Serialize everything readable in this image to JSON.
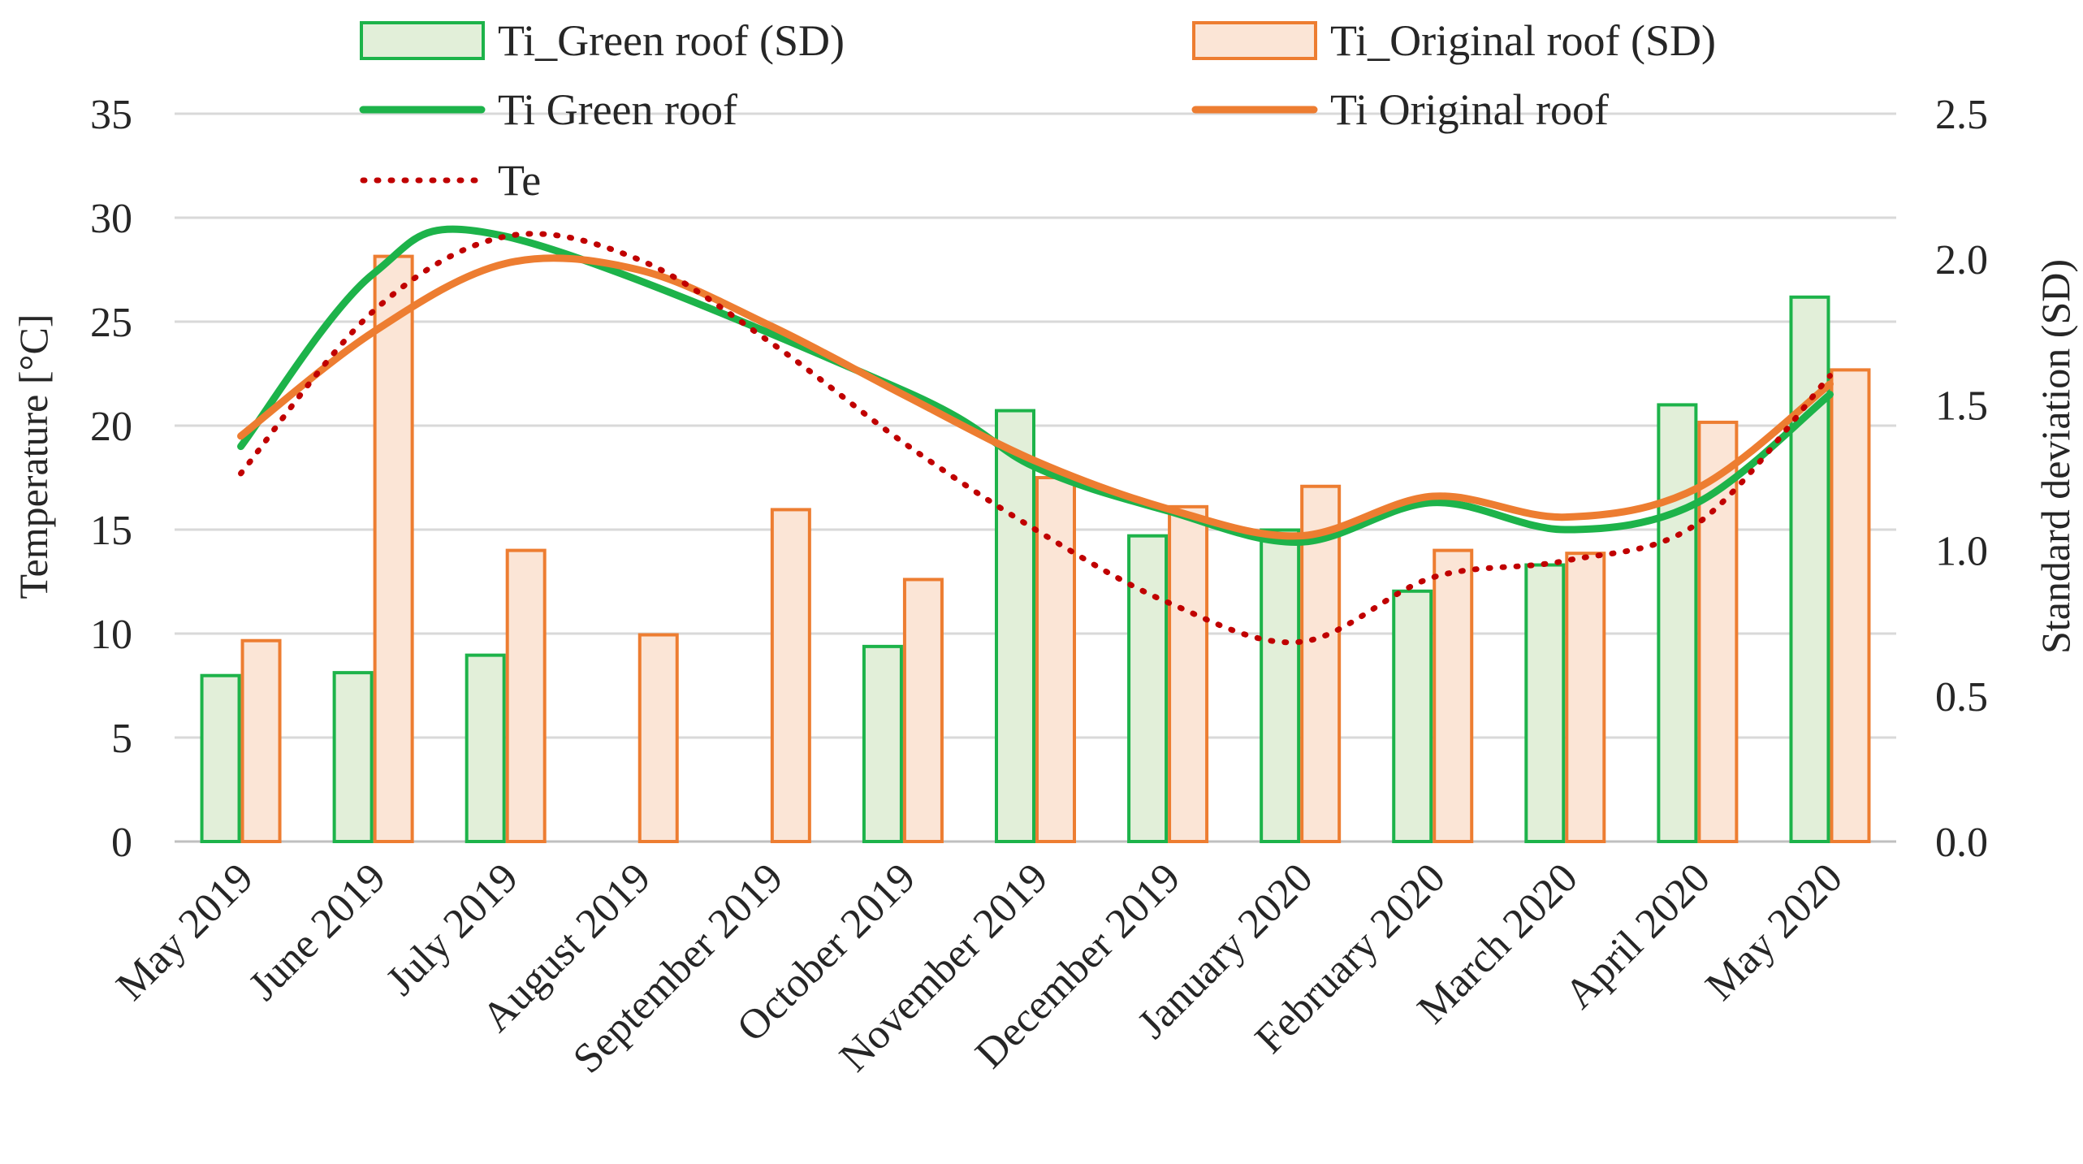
{
  "chart_data": {
    "type": "bar",
    "categories": [
      "May 2019",
      "June 2019",
      "July 2019",
      "August 2019",
      "September 2019",
      "October 2019",
      "November 2019",
      "December 2019",
      "January 2020",
      "February 2020",
      "March 2020",
      "April 2020",
      "May 2020"
    ],
    "bar_series": [
      {
        "name": "Ti_Green roof (SD)",
        "axis": "right",
        "color": "#1db34a",
        "fill": "#e2efd9",
        "values": [
          0.57,
          0.58,
          0.64,
          null,
          null,
          0.67,
          1.48,
          1.05,
          1.07,
          0.86,
          0.95,
          1.5,
          1.87
        ]
      },
      {
        "name": "Ti_Original roof (SD)",
        "axis": "right",
        "color": "#ed7d31",
        "fill": "#fbe5d6",
        "values": [
          0.69,
          2.01,
          1.0,
          0.71,
          1.14,
          0.9,
          1.25,
          1.15,
          1.22,
          1.0,
          0.99,
          1.44,
          1.62
        ]
      }
    ],
    "line_series": [
      {
        "name": "Ti Green roof",
        "axis": "left",
        "color": "#1db34a",
        "style": "solid",
        "values": [
          19.0,
          27.3,
          29.1,
          null,
          null,
          21.7,
          18.0,
          15.9,
          14.4,
          16.3,
          15.0,
          16.3,
          21.5
        ]
      },
      {
        "name": "Ti Original roof",
        "axis": "left",
        "color": "#ed7d31",
        "style": "solid",
        "values": [
          19.5,
          24.5,
          27.8,
          27.5,
          24.8,
          21.5,
          18.3,
          16.0,
          14.7,
          16.6,
          15.6,
          17.0,
          22.0
        ]
      },
      {
        "name": "Te",
        "axis": "left",
        "color": "#c00000",
        "style": "dotted",
        "values": [
          17.7,
          25.5,
          29.1,
          28.0,
          24.0,
          19.2,
          15.0,
          11.5,
          9.6,
          12.7,
          13.5,
          15.3,
          22.4
        ]
      }
    ],
    "legend": [
      {
        "label": "Ti_Green roof (SD)",
        "kind": "bar",
        "color": "#1db34a",
        "fill": "#e2efd9"
      },
      {
        "label": "Ti_Original roof (SD)",
        "kind": "bar",
        "color": "#ed7d31",
        "fill": "#fbe5d6"
      },
      {
        "label": "Ti Green roof",
        "kind": "line",
        "color": "#1db34a",
        "dash": false
      },
      {
        "label": "Ti Original roof",
        "kind": "line",
        "color": "#ed7d31",
        "dash": false
      },
      {
        "label": "Te",
        "kind": "line",
        "color": "#c00000",
        "dash": true
      }
    ],
    "ylabel": "Temperature [°C]",
    "y2label": "Standard deviation (SD)",
    "ylim": [
      0,
      35
    ],
    "y2lim": [
      0,
      2.5
    ],
    "y_ticks": [
      0,
      5,
      10,
      15,
      20,
      25,
      30,
      35
    ],
    "y2_ticks": [
      "0.0",
      "0.5",
      "1.0",
      "1.5",
      "2.0",
      "2.5"
    ],
    "grid": true,
    "legend_position": "top"
  }
}
